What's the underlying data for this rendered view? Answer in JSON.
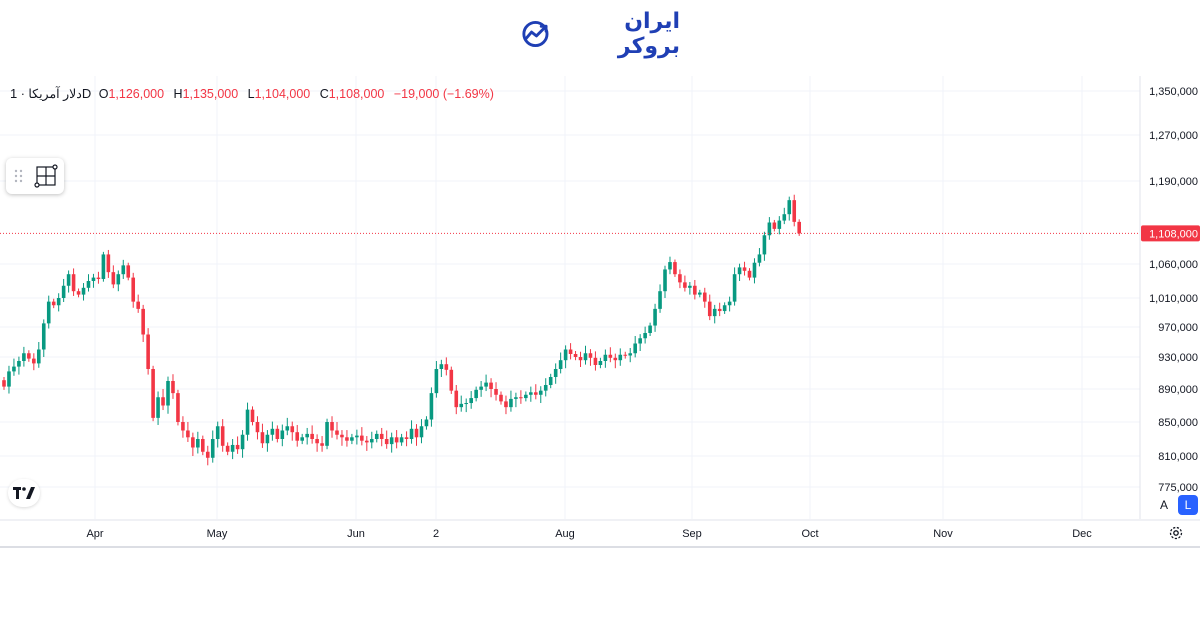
{
  "brand": {
    "name": "ایران بروکر",
    "color": "#1f3fb4"
  },
  "legend": {
    "symbol": "دلار آمریکا",
    "timeframe": "1D",
    "open_label": "O",
    "open": "1,126,000",
    "high_label": "H",
    "high": "1,135,000",
    "low_label": "L",
    "low": "1,104,000",
    "close_label": "C",
    "close": "1,108,000",
    "change": "−19,000 (−1.69%)"
  },
  "scale_buttons": {
    "auto": "A",
    "log": "L"
  },
  "icons": {
    "drawing_tool": "crosshair-frame-icon",
    "tradingview": "tradingview-logo-icon",
    "settings": "gear-icon"
  },
  "colors": {
    "up": "#089981",
    "down": "#f23645",
    "price_line": "#f23645",
    "grid": "#f0f3fa",
    "axis_text": "#131722"
  },
  "chart_data": {
    "type": "candlestick",
    "ylim": [
      775000,
      1350000
    ],
    "y_ticks": [
      {
        "value": 1350000,
        "label": "1,350,000"
      },
      {
        "value": 1270000,
        "label": "1,270,000"
      },
      {
        "value": 1190000,
        "label": "1,190,000"
      },
      {
        "value": 1060000,
        "label": "1,060,000"
      },
      {
        "value": 1010000,
        "label": "1,010,000"
      },
      {
        "value": 970000,
        "label": "970,000"
      },
      {
        "value": 930000,
        "label": "930,000"
      },
      {
        "value": 890000,
        "label": "890,000"
      },
      {
        "value": 850000,
        "label": "850,000"
      },
      {
        "value": 810000,
        "label": "810,000"
      },
      {
        "value": 775000,
        "label": "775,000"
      }
    ],
    "x_labels": [
      "Apr",
      "May",
      "Jun",
      "2",
      "Aug",
      "Sep",
      "Oct",
      "Nov",
      "Dec"
    ],
    "last_price": {
      "value": 1108000,
      "label": "1,108,000"
    },
    "closes": [
      893000,
      912000,
      918000,
      925000,
      935000,
      928000,
      922000,
      940000,
      975000,
      1005000,
      1000000,
      1010000,
      1028000,
      1045000,
      1020000,
      1015000,
      1025000,
      1035000,
      1040000,
      1038000,
      1075000,
      1048000,
      1030000,
      1045000,
      1058000,
      1040000,
      1005000,
      995000,
      960000,
      915000,
      855000,
      880000,
      870000,
      900000,
      885000,
      850000,
      840000,
      832000,
      820000,
      830000,
      815000,
      808000,
      830000,
      845000,
      822000,
      815000,
      823000,
      818000,
      835000,
      865000,
      850000,
      838000,
      825000,
      835000,
      842000,
      830000,
      840000,
      845000,
      838000,
      828000,
      832000,
      836000,
      830000,
      825000,
      822000,
      850000,
      840000,
      835000,
      832000,
      828000,
      832000,
      834000,
      828000,
      826000,
      830000,
      836000,
      830000,
      824000,
      832000,
      826000,
      832000,
      830000,
      842000,
      832000,
      845000,
      853000,
      885000,
      915000,
      921000,
      914000,
      888000,
      868000,
      872000,
      873000,
      879000,
      889000,
      893000,
      898000,
      890000,
      883000,
      875000,
      868000,
      878000,
      880000,
      879000,
      883000,
      886000,
      883000,
      888000,
      895000,
      905000,
      915000,
      926000,
      940000,
      934000,
      930000,
      926000,
      935000,
      929000,
      920000,
      925000,
      933000,
      929000,
      926000,
      933000,
      932000,
      935000,
      948000,
      955000,
      962000,
      972000,
      995000,
      1020000,
      1052000,
      1063000,
      1045000,
      1033000,
      1025000,
      1028000,
      1015000,
      1018000,
      1005000,
      985000,
      995000,
      992000,
      1000000,
      1005000,
      1045000,
      1055000,
      1050000,
      1040000,
      1062000,
      1075000,
      1105000,
      1125000,
      1115000,
      1128000,
      1138000,
      1160000,
      1126000,
      1108000
    ]
  }
}
